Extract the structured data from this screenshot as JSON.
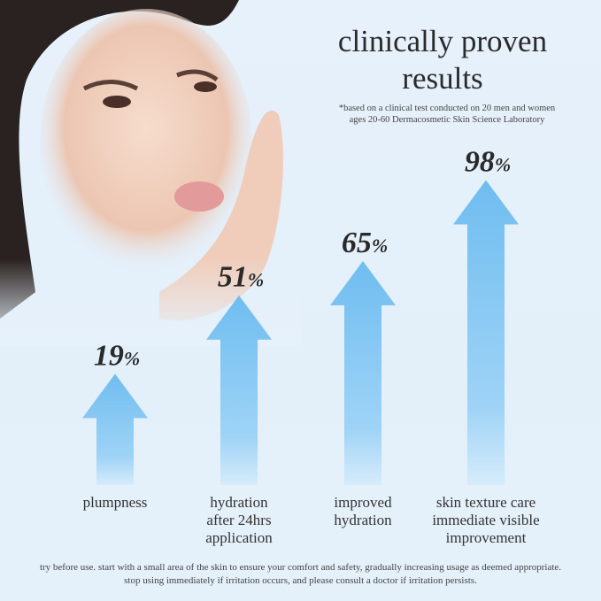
{
  "header": {
    "title_line1": "clinically proven",
    "title_line2": "results",
    "footnote_line1": "*based on a clinical test conducted on 20 men and women",
    "footnote_line2": "ages 20-60 Dermacosmetic Skin Science Laboratory"
  },
  "chart_data": {
    "type": "bar",
    "categories": [
      "plumpness",
      "hydration after 24hrs application",
      "improved hydration",
      "skin texture care immediate visible improvement"
    ],
    "category_lines": [
      [
        "plumpness"
      ],
      [
        "hydration",
        "after 24hrs",
        "application"
      ],
      [
        "improved",
        "hydration"
      ],
      [
        "skin texture care",
        "immediate visible",
        "improvement"
      ]
    ],
    "values": [
      19,
      51,
      65,
      98
    ],
    "value_labels": [
      "19%",
      "51%",
      "65%",
      "98%"
    ],
    "unit": "%",
    "mark": "arrow",
    "color": "#7cc3f2"
  },
  "disclaimer": {
    "line1": "try before use. start with a small area of the skin to ensure your comfort and safety, gradually increasing usage as deemed appropriate.",
    "line2": "stop using immediately if irritation occurs, and please consult a doctor if irritation persists."
  },
  "image": {
    "subject": "model-photo"
  }
}
